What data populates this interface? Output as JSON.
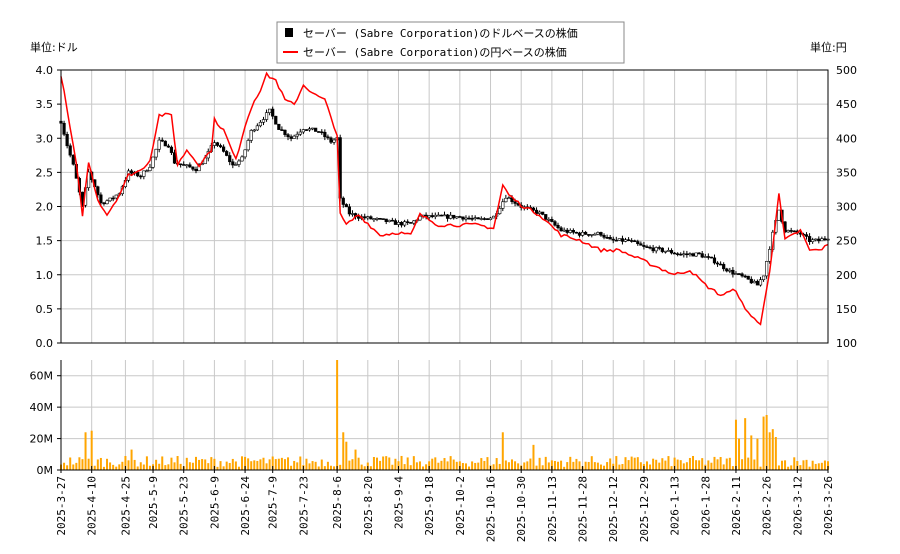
{
  "chart_data": [
    {
      "type": "line",
      "title": "",
      "legend": {
        "placement": "top-center",
        "entries": [
          {
            "label": "セーバー (Sabre Corporation)のドルベースの株価",
            "color": "#000000",
            "marker": "square"
          },
          {
            "label": "セーバー (Sabre Corporation)の円ベースの株価",
            "color": "#ff0000",
            "marker": "line"
          }
        ]
      },
      "left_unit_label": "単位:ドル",
      "right_unit_label": "単位:円",
      "ylim_left": [
        0.0,
        4.0
      ],
      "ylim_right": [
        100,
        500
      ],
      "yticks_left": [
        "0.0",
        "0.5",
        "1.0",
        "1.5",
        "2.0",
        "2.5",
        "3.0",
        "3.5",
        "4.0"
      ],
      "yticks_right": [
        "100",
        "150",
        "200",
        "250",
        "300",
        "350",
        "400",
        "450",
        "500"
      ],
      "x_days": 250,
      "xtick_labels": [
        "2025-3-27",
        "2025-4-10",
        "2025-4-25",
        "2025-5-9",
        "2025-5-23",
        "2025-6-9",
        "2025-6-24",
        "2025-7-9",
        "2025-7-23",
        "2025-8-6",
        "2025-8-20",
        "2025-9-4",
        "2025-9-18",
        "2025-10-2",
        "2025-10-16",
        "2025-10-30",
        "2025-11-13",
        "2025-11-28",
        "2025-12-12",
        "2025-12-29",
        "2026-1-13",
        "2026-1-28",
        "2026-2-11",
        "2026-2-26",
        "2026-3-12",
        "2026-3-26"
      ],
      "xtick_days": [
        0,
        10,
        21,
        30,
        40,
        50,
        60,
        69,
        79,
        90,
        100,
        110,
        120,
        130,
        140,
        150,
        160,
        170,
        180,
        190,
        200,
        210,
        220,
        230,
        240,
        250
      ],
      "grid": true,
      "series": [
        {
          "name": "USD price",
          "color": "#000000",
          "style": "ohlc",
          "points": [
            [
              0,
              3.25
            ],
            [
              2,
              2.9
            ],
            [
              4,
              2.6
            ],
            [
              6,
              2.2
            ],
            [
              7,
              2.0
            ],
            [
              9,
              2.5
            ],
            [
              11,
              2.3
            ],
            [
              13,
              2.05
            ],
            [
              16,
              2.1
            ],
            [
              19,
              2.2
            ],
            [
              22,
              2.5
            ],
            [
              26,
              2.45
            ],
            [
              29,
              2.6
            ],
            [
              32,
              2.95
            ],
            [
              35,
              2.9
            ],
            [
              37,
              2.65
            ],
            [
              40,
              2.6
            ],
            [
              44,
              2.55
            ],
            [
              47,
              2.7
            ],
            [
              50,
              2.95
            ],
            [
              53,
              2.8
            ],
            [
              56,
              2.6
            ],
            [
              59,
              2.7
            ],
            [
              62,
              3.1
            ],
            [
              65,
              3.25
            ],
            [
              68,
              3.4
            ],
            [
              71,
              3.15
            ],
            [
              75,
              3.0
            ],
            [
              79,
              3.15
            ],
            [
              84,
              3.1
            ],
            [
              88,
              2.95
            ],
            [
              90,
              3.0
            ],
            [
              91,
              2.1
            ],
            [
              94,
              1.9
            ],
            [
              97,
              1.85
            ],
            [
              104,
              1.8
            ],
            [
              110,
              1.75
            ],
            [
              114,
              1.75
            ],
            [
              117,
              1.85
            ],
            [
              123,
              1.85
            ],
            [
              130,
              1.85
            ],
            [
              136,
              1.8
            ],
            [
              141,
              1.85
            ],
            [
              145,
              2.15
            ],
            [
              150,
              2.0
            ],
            [
              156,
              1.9
            ],
            [
              163,
              1.65
            ],
            [
              169,
              1.6
            ],
            [
              176,
              1.6
            ],
            [
              179,
              1.5
            ],
            [
              185,
              1.5
            ],
            [
              190,
              1.4
            ],
            [
              197,
              1.35
            ],
            [
              202,
              1.3
            ],
            [
              208,
              1.3
            ],
            [
              213,
              1.2
            ],
            [
              218,
              1.05
            ],
            [
              223,
              0.95
            ],
            [
              227,
              0.85
            ],
            [
              229,
              1.0
            ],
            [
              232,
              1.6
            ],
            [
              234,
              1.95
            ],
            [
              236,
              1.65
            ],
            [
              241,
              1.6
            ],
            [
              244,
              1.5
            ],
            [
              247,
              1.5
            ],
            [
              250,
              1.55
            ]
          ]
        },
        {
          "name": "JPY price",
          "color": "#ff0000",
          "style": "line",
          "axis": "right",
          "points": [
            [
              0,
              493
            ],
            [
              2,
              441
            ],
            [
              5,
              361
            ],
            [
              7,
              288
            ],
            [
              9,
              365
            ],
            [
              12,
              310
            ],
            [
              15,
              288
            ],
            [
              19,
              317
            ],
            [
              22,
              346
            ],
            [
              26,
              353
            ],
            [
              29,
              368
            ],
            [
              32,
              434
            ],
            [
              36,
              434
            ],
            [
              38,
              361
            ],
            [
              41,
              383
            ],
            [
              45,
              361
            ],
            [
              49,
              383
            ],
            [
              50,
              427
            ],
            [
              53,
              412
            ],
            [
              57,
              368
            ],
            [
              60,
              419
            ],
            [
              63,
              456
            ],
            [
              65,
              471
            ],
            [
              67,
              493
            ],
            [
              70,
              485
            ],
            [
              73,
              456
            ],
            [
              76,
              449
            ],
            [
              79,
              478
            ],
            [
              83,
              463
            ],
            [
              86,
              456
            ],
            [
              90,
              405
            ],
            [
              91,
              288
            ],
            [
              93,
              273
            ],
            [
              97,
              288
            ],
            [
              104,
              258
            ],
            [
              110,
              262
            ],
            [
              114,
              258
            ],
            [
              117,
              288
            ],
            [
              123,
              273
            ],
            [
              130,
              273
            ],
            [
              136,
              273
            ],
            [
              141,
              268
            ],
            [
              144,
              331
            ],
            [
              146,
              317
            ],
            [
              150,
              302
            ],
            [
              156,
              288
            ],
            [
              163,
              258
            ],
            [
              169,
              251
            ],
            [
              176,
              236
            ],
            [
              182,
              236
            ],
            [
              189,
              222
            ],
            [
              195,
              210
            ],
            [
              200,
              200
            ],
            [
              205,
              207
            ],
            [
              210,
              185
            ],
            [
              215,
              170
            ],
            [
              220,
              178
            ],
            [
              223,
              148
            ],
            [
              225,
              141
            ],
            [
              228,
              126
            ],
            [
              231,
              207
            ],
            [
              234,
              317
            ],
            [
              236,
              251
            ],
            [
              241,
              265
            ],
            [
              244,
              236
            ],
            [
              247,
              236
            ],
            [
              250,
              243
            ]
          ]
        }
      ]
    },
    {
      "type": "bar",
      "title": "",
      "ylabel": "",
      "ylim": [
        0,
        70
      ],
      "unit": "M",
      "yticks": [
        "0M",
        "20M",
        "40M",
        "60M"
      ],
      "color": "#ffa500",
      "baseline_range_millions": [
        2,
        9
      ],
      "spikes": [
        [
          8,
          24
        ],
        [
          10,
          25
        ],
        [
          23,
          13
        ],
        [
          90,
          70
        ],
        [
          92,
          24
        ],
        [
          93,
          18
        ],
        [
          96,
          13
        ],
        [
          144,
          24
        ],
        [
          154,
          16
        ],
        [
          220,
          32
        ],
        [
          221,
          20
        ],
        [
          223,
          33
        ],
        [
          225,
          22
        ],
        [
          227,
          20
        ],
        [
          229,
          34
        ],
        [
          230,
          35
        ],
        [
          231,
          24
        ],
        [
          232,
          26
        ],
        [
          233,
          21
        ]
      ]
    }
  ]
}
